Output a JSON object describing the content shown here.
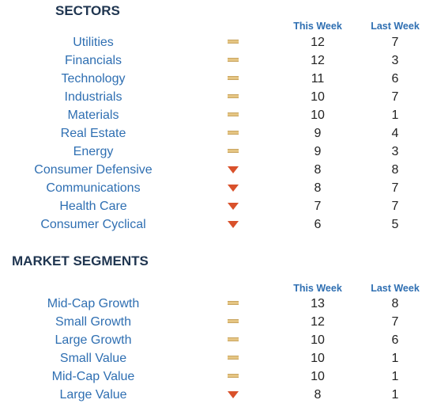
{
  "sectors": {
    "title": "SECTORS",
    "this_week_label": "This Week",
    "last_week_label": "Last Week",
    "rows": [
      {
        "name": "Utilities",
        "trend": "flat",
        "this_week": "12",
        "last_week": "7"
      },
      {
        "name": "Financials",
        "trend": "flat",
        "this_week": "12",
        "last_week": "3"
      },
      {
        "name": "Technology",
        "trend": "flat",
        "this_week": "11",
        "last_week": "6"
      },
      {
        "name": "Industrials",
        "trend": "flat",
        "this_week": "10",
        "last_week": "7"
      },
      {
        "name": "Materials",
        "trend": "flat",
        "this_week": "10",
        "last_week": "1"
      },
      {
        "name": "Real Estate",
        "trend": "flat",
        "this_week": "9",
        "last_week": "4"
      },
      {
        "name": "Energy",
        "trend": "flat",
        "this_week": "9",
        "last_week": "3"
      },
      {
        "name": "Consumer Defensive",
        "trend": "down",
        "this_week": "8",
        "last_week": "8"
      },
      {
        "name": "Communications",
        "trend": "down",
        "this_week": "8",
        "last_week": "7"
      },
      {
        "name": "Health Care",
        "trend": "down",
        "this_week": "7",
        "last_week": "7"
      },
      {
        "name": "Consumer Cyclical",
        "trend": "down",
        "this_week": "6",
        "last_week": "5"
      }
    ]
  },
  "segments": {
    "title": "MARKET SEGMENTS",
    "this_week_label": "This Week",
    "last_week_label": "Last Week",
    "rows": [
      {
        "name": "Mid-Cap Growth",
        "trend": "flat",
        "this_week": "13",
        "last_week": "8"
      },
      {
        "name": "Small Growth",
        "trend": "flat",
        "this_week": "12",
        "last_week": "7"
      },
      {
        "name": "Large Growth",
        "trend": "flat",
        "this_week": "10",
        "last_week": "6"
      },
      {
        "name": "Small Value",
        "trend": "flat",
        "this_week": "10",
        "last_week": "1"
      },
      {
        "name": "Mid-Cap Value",
        "trend": "flat",
        "this_week": "10",
        "last_week": "1"
      },
      {
        "name": "Large Value",
        "trend": "down",
        "this_week": "8",
        "last_week": "1"
      }
    ]
  },
  "colors": {
    "title": "#1f3550",
    "label_blue": "#2f6fb2",
    "flat_marker": "#e5c583",
    "down_marker": "#d9512b"
  }
}
